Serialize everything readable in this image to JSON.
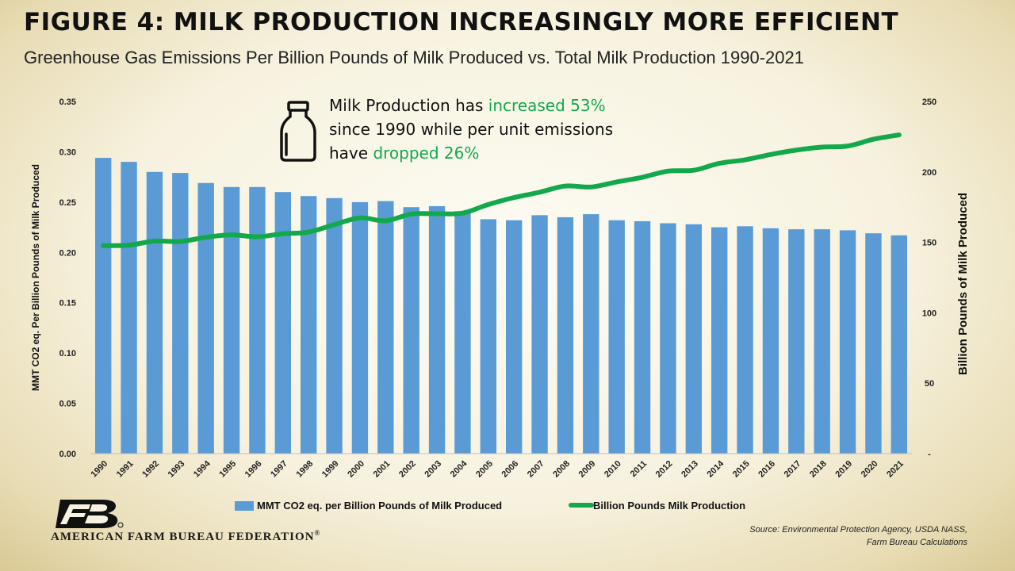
{
  "header": {
    "title": "FIGURE 4: MILK PRODUCTION INCREASINGLY MORE EFFICIENT",
    "subtitle": "Greenhouse Gas Emissions Per Billion Pounds of Milk Produced vs. Total Milk Production 1990-2021"
  },
  "annotation": {
    "part1": "Milk Production has ",
    "highlight1": "increased 53%",
    "part2": "since 1990 while per unit emissions",
    "part3": "have ",
    "highlight2": "dropped 26%"
  },
  "source": {
    "line1": "Source: Environmental Protection Agency, USDA NASS,",
    "line2": "Farm Bureau Calculations"
  },
  "logo": {
    "text": "AMERICAN FARM BUREAU FEDERATION",
    "mark": "®",
    "icon": "fb-logo-icon"
  },
  "colors": {
    "bar": "#5b9bd5",
    "line": "#12a84b",
    "highlight": "#12a84b"
  },
  "chart_data": {
    "type": "bar",
    "categories": [
      "1990",
      "1991",
      "1992",
      "1993",
      "1994",
      "1995",
      "1996",
      "1997",
      "1998",
      "1999",
      "2000",
      "2001",
      "2002",
      "2003",
      "2004",
      "2005",
      "2006",
      "2007",
      "2008",
      "2009",
      "2010",
      "2011",
      "2012",
      "2013",
      "2014",
      "2015",
      "2016",
      "2017",
      "2018",
      "2019",
      "2020",
      "2021"
    ],
    "series": [
      {
        "name": "MMT CO2 eq. per Billion Pounds of Milk Produced",
        "type": "bar",
        "axis": "left",
        "values": [
          0.294,
          0.29,
          0.28,
          0.279,
          0.269,
          0.265,
          0.265,
          0.26,
          0.256,
          0.254,
          0.25,
          0.251,
          0.245,
          0.246,
          0.241,
          0.233,
          0.232,
          0.237,
          0.235,
          0.238,
          0.232,
          0.231,
          0.229,
          0.228,
          0.225,
          0.226,
          0.224,
          0.223,
          0.223,
          0.222,
          0.219,
          0.217
        ]
      },
      {
        "name": "Billion Pounds Milk Production",
        "type": "line",
        "axis": "right",
        "values": [
          147.7,
          148.0,
          150.9,
          150.6,
          153.6,
          155.3,
          154.0,
          156.1,
          157.3,
          162.6,
          167.4,
          165.3,
          170.1,
          170.3,
          170.8,
          176.9,
          181.8,
          185.6,
          190.0,
          189.3,
          192.9,
          196.2,
          200.6,
          201.2,
          206.1,
          208.6,
          212.4,
          215.5,
          217.6,
          218.4,
          223.2,
          226.3
        ]
      }
    ],
    "y_left": {
      "label": "MMT CO2 eq. Per Billion Pounds of Milk Produced",
      "ylim": [
        0,
        0.35
      ],
      "ticks": [
        "0.00",
        "0.05",
        "0.10",
        "0.15",
        "0.20",
        "0.25",
        "0.30",
        "0.35"
      ]
    },
    "y_right": {
      "label": "Billion Pounds of Milk Produced",
      "ylim": [
        0,
        250
      ],
      "ticks": [
        "-",
        "50",
        "100",
        "150",
        "200",
        "250"
      ]
    },
    "grid": false,
    "legend_position": "bottom"
  }
}
